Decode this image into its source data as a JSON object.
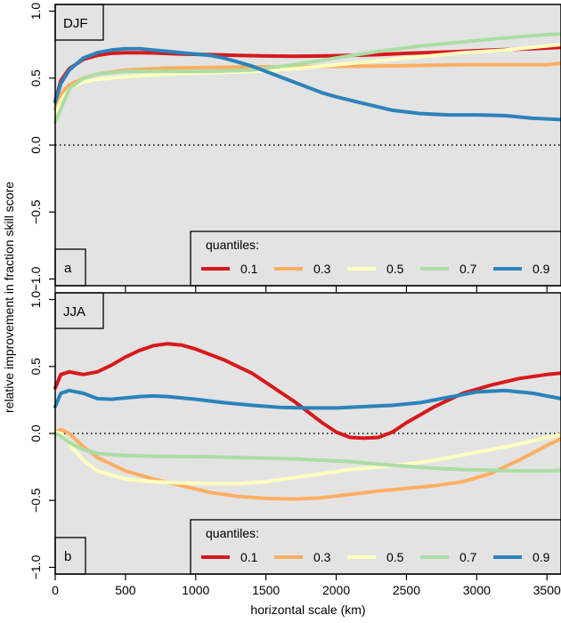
{
  "figure": {
    "ylabel": "relative improvement in fraction skill score",
    "xlabel": "horizontal scale (km)",
    "legend_title": "quantiles:"
  },
  "chart_data": [
    {
      "type": "line",
      "title": "DJF",
      "panel_label": "a",
      "xlim": [
        0,
        3600
      ],
      "ylim": [
        -1.05,
        1.05
      ],
      "xticks": [
        0,
        500,
        1000,
        1500,
        2000,
        2500,
        3000,
        3500
      ],
      "yticks": [
        -1.0,
        -0.5,
        0.0,
        0.5,
        1.0
      ],
      "ytick_labels": [
        "−1.0",
        "−0.5",
        "0.0",
        "0.5",
        "1.0"
      ],
      "reference_line": 0.0,
      "grid": false,
      "legend_position": "bottom-right",
      "series": [
        {
          "name": "0.1",
          "color": "#d7191c",
          "x": [
            0,
            40,
            100,
            200,
            300,
            400,
            500,
            600,
            700,
            900,
            1100,
            1300,
            1500,
            1700,
            1900,
            2100,
            2300,
            2500,
            2800,
            3100,
            3400,
            3600
          ],
          "y": [
            0.33,
            0.48,
            0.57,
            0.64,
            0.67,
            0.685,
            0.69,
            0.69,
            0.688,
            0.68,
            0.675,
            0.67,
            0.665,
            0.663,
            0.665,
            0.67,
            0.675,
            0.685,
            0.695,
            0.71,
            0.72,
            0.73
          ]
        },
        {
          "name": "0.3",
          "color": "#fdae61",
          "x": [
            0,
            40,
            100,
            200,
            300,
            500,
            800,
            1100,
            1400,
            1700,
            2000,
            2300,
            2600,
            2900,
            3200,
            3500,
            3600
          ],
          "y": [
            0.27,
            0.38,
            0.45,
            0.5,
            0.53,
            0.56,
            0.575,
            0.58,
            0.583,
            0.585,
            0.588,
            0.59,
            0.595,
            0.6,
            0.6,
            0.6,
            0.61
          ]
        },
        {
          "name": "0.5",
          "color": "#ffffbf",
          "x": [
            0,
            40,
            100,
            200,
            300,
            500,
            800,
            1100,
            1400,
            1700,
            2000,
            2300,
            2600,
            2900,
            3200,
            3500,
            3600
          ],
          "y": [
            0.22,
            0.33,
            0.42,
            0.47,
            0.49,
            0.51,
            0.53,
            0.54,
            0.55,
            0.57,
            0.6,
            0.63,
            0.66,
            0.69,
            0.71,
            0.74,
            0.75
          ]
        },
        {
          "name": "0.7",
          "color": "#abdda4",
          "x": [
            0,
            40,
            100,
            200,
            300,
            500,
            800,
            1100,
            1400,
            1700,
            2000,
            2300,
            2600,
            2900,
            3200,
            3500,
            3600
          ],
          "y": [
            0.17,
            0.27,
            0.42,
            0.5,
            0.53,
            0.55,
            0.55,
            0.55,
            0.56,
            0.6,
            0.65,
            0.7,
            0.74,
            0.77,
            0.8,
            0.825,
            0.83
          ]
        },
        {
          "name": "0.9",
          "color": "#2b83ba",
          "x": [
            0,
            40,
            100,
            200,
            300,
            400,
            500,
            600,
            700,
            800,
            900,
            1000,
            1100,
            1200,
            1300,
            1400,
            1500,
            1600,
            1700,
            1800,
            1900,
            2000,
            2200,
            2400,
            2600,
            2800,
            3000,
            3200,
            3400,
            3600
          ],
          "y": [
            0.32,
            0.46,
            0.56,
            0.65,
            0.69,
            0.71,
            0.72,
            0.72,
            0.71,
            0.7,
            0.69,
            0.68,
            0.67,
            0.65,
            0.62,
            0.59,
            0.55,
            0.51,
            0.47,
            0.43,
            0.39,
            0.36,
            0.31,
            0.26,
            0.235,
            0.225,
            0.225,
            0.22,
            0.2,
            0.19
          ]
        }
      ]
    },
    {
      "type": "line",
      "title": "JJA",
      "panel_label": "b",
      "xlim": [
        0,
        3600
      ],
      "ylim": [
        -1.05,
        1.05
      ],
      "xticks": [
        0,
        500,
        1000,
        1500,
        2000,
        2500,
        3000,
        3500
      ],
      "yticks": [
        -1.0,
        -0.5,
        0.0,
        0.5,
        1.0
      ],
      "ytick_labels": [
        "−1.0",
        "−0.5",
        "0.0",
        "0.5",
        "1.0"
      ],
      "reference_line": 0.0,
      "grid": false,
      "legend_position": "bottom-right",
      "series": [
        {
          "name": "0.1",
          "color": "#d7191c",
          "x": [
            0,
            40,
            100,
            200,
            300,
            400,
            500,
            600,
            700,
            800,
            900,
            1000,
            1100,
            1200,
            1300,
            1400,
            1500,
            1600,
            1700,
            1800,
            1900,
            2000,
            2100,
            2200,
            2300,
            2400,
            2500,
            2700,
            2900,
            3100,
            3300,
            3500,
            3600
          ],
          "y": [
            0.34,
            0.44,
            0.46,
            0.44,
            0.46,
            0.51,
            0.57,
            0.62,
            0.655,
            0.67,
            0.66,
            0.63,
            0.59,
            0.55,
            0.5,
            0.45,
            0.38,
            0.31,
            0.24,
            0.16,
            0.08,
            0.01,
            -0.03,
            -0.035,
            -0.03,
            0.01,
            0.08,
            0.2,
            0.3,
            0.36,
            0.41,
            0.44,
            0.45
          ]
        },
        {
          "name": "0.3",
          "color": "#fdae61",
          "x": [
            0,
            40,
            100,
            200,
            300,
            500,
            700,
            900,
            1100,
            1300,
            1500,
            1700,
            1900,
            2100,
            2300,
            2500,
            2700,
            2900,
            3100,
            3300,
            3500,
            3600
          ],
          "y": [
            0.01,
            0.03,
            0.0,
            -0.1,
            -0.18,
            -0.28,
            -0.34,
            -0.39,
            -0.44,
            -0.47,
            -0.485,
            -0.49,
            -0.48,
            -0.455,
            -0.43,
            -0.41,
            -0.39,
            -0.36,
            -0.3,
            -0.2,
            -0.09,
            -0.04
          ]
        },
        {
          "name": "0.5",
          "color": "#ffffbf",
          "x": [
            0,
            40,
            100,
            200,
            300,
            500,
            700,
            900,
            1100,
            1300,
            1500,
            1700,
            1900,
            2100,
            2300,
            2500,
            2700,
            2900,
            3100,
            3300,
            3500,
            3600
          ],
          "y": [
            0.01,
            0.0,
            -0.08,
            -0.2,
            -0.28,
            -0.34,
            -0.36,
            -0.37,
            -0.375,
            -0.375,
            -0.36,
            -0.33,
            -0.3,
            -0.27,
            -0.25,
            -0.23,
            -0.2,
            -0.16,
            -0.12,
            -0.08,
            -0.03,
            -0.01
          ]
        },
        {
          "name": "0.7",
          "color": "#abdda4",
          "x": [
            0,
            40,
            100,
            200,
            300,
            500,
            700,
            900,
            1100,
            1300,
            1500,
            1700,
            1900,
            2100,
            2300,
            2500,
            2700,
            2900,
            3100,
            3300,
            3500,
            3600
          ],
          "y": [
            0.0,
            -0.02,
            -0.07,
            -0.12,
            -0.15,
            -0.165,
            -0.17,
            -0.172,
            -0.175,
            -0.18,
            -0.185,
            -0.19,
            -0.2,
            -0.21,
            -0.23,
            -0.245,
            -0.26,
            -0.27,
            -0.275,
            -0.28,
            -0.28,
            -0.275
          ]
        },
        {
          "name": "0.9",
          "color": "#2b83ba",
          "x": [
            0,
            40,
            100,
            200,
            300,
            400,
            500,
            600,
            700,
            800,
            900,
            1000,
            1200,
            1400,
            1600,
            1800,
            2000,
            2200,
            2400,
            2600,
            2800,
            3000,
            3200,
            3400,
            3600
          ],
          "y": [
            0.2,
            0.3,
            0.32,
            0.3,
            0.26,
            0.255,
            0.265,
            0.275,
            0.28,
            0.275,
            0.265,
            0.255,
            0.23,
            0.21,
            0.195,
            0.19,
            0.19,
            0.2,
            0.21,
            0.23,
            0.27,
            0.31,
            0.32,
            0.3,
            0.26
          ]
        }
      ]
    }
  ]
}
